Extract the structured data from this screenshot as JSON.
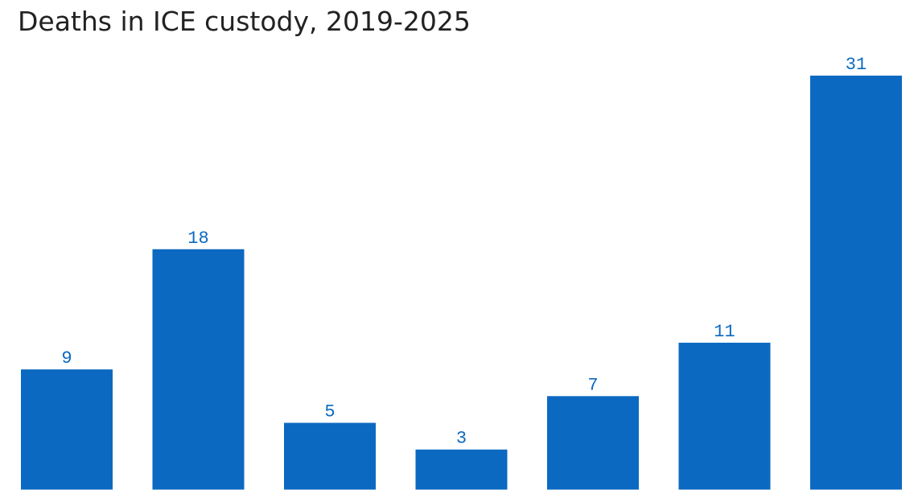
{
  "chart_data": {
    "type": "bar",
    "title": "Deaths in ICE custody, 2019-2025",
    "categories": [
      null,
      null,
      null,
      null,
      null,
      null,
      null
    ],
    "values": [
      9,
      18,
      5,
      3,
      7,
      11,
      31
    ],
    "color": "#0b69c1"
  }
}
